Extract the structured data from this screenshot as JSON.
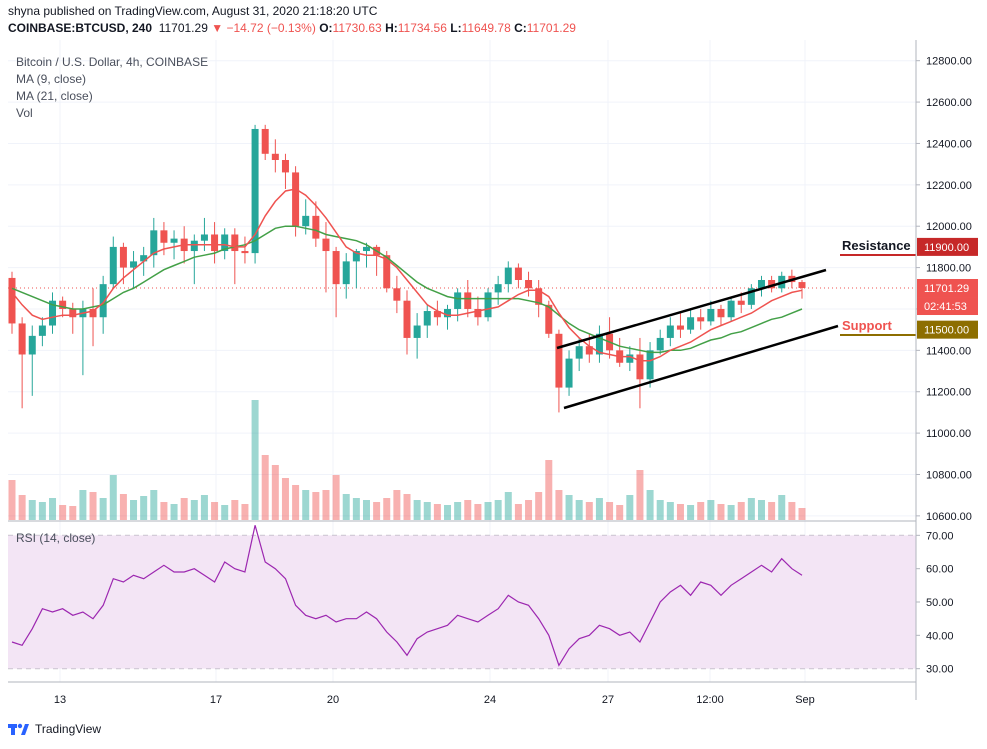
{
  "header": {
    "published": "shyna published on TradingView.com, August 31, 2020 21:18:20 UTC",
    "symbol": "COINBASE:BTCUSD, 240",
    "last": "11701.29",
    "change": "−14.72 (−0.13%)",
    "o_label": "O:",
    "o": "11730.63",
    "h_label": "H:",
    "h": "11734.56",
    "l_label": "L:",
    "l": "11649.78",
    "c_label": "C:",
    "c": "11701.29"
  },
  "legend": {
    "title": "Bitcoin / U.S. Dollar, 4h, COINBASE",
    "ma9": "MA (9, close)",
    "ma21": "MA (21, close)",
    "vol": "Vol"
  },
  "annotations": {
    "resistance": "Resistance",
    "support": "Support"
  },
  "rsi_label": "RSI (14, close)",
  "footer": {
    "brand": "TradingView"
  },
  "colors": {
    "up": "#26a69a",
    "down": "#ef5350",
    "ma9": "#ef5350",
    "ma21": "#43a047",
    "resistance": "#c62828",
    "support": "#8d6e00",
    "rsi_line": "#9c27b0",
    "rsi_bg": "#f3e5f5"
  },
  "chart_data": [
    {
      "type": "candlestick",
      "title": "Bitcoin / U.S. Dollar, 4h, COINBASE",
      "y_ticks": [
        "12800.00",
        "12600.00",
        "12400.00",
        "12200.00",
        "12000.00",
        "11800.00",
        "11600.00",
        "11400.00",
        "11200.00",
        "11000.00",
        "10800.00",
        "10600.00"
      ],
      "ylim": [
        10580,
        12900
      ],
      "x_ticks": [
        "13",
        "17",
        "20",
        "24",
        "27",
        "12:00",
        "Sep"
      ],
      "price_labels": [
        {
          "text": "11900.00",
          "value": 11900,
          "color": "#c62828"
        },
        {
          "text": "11701.29",
          "value": 11701.29,
          "color": "#ef5350"
        },
        {
          "text": "02:41:53",
          "value": 11630,
          "color": "#ef5350"
        },
        {
          "text": "11500.00",
          "value": 11500,
          "color": "#8d6e00"
        }
      ],
      "candles": [
        [
          11750,
          11780,
          11480,
          11530
        ],
        [
          11530,
          11560,
          11120,
          11380
        ],
        [
          11380,
          11520,
          11180,
          11470
        ],
        [
          11470,
          11560,
          11420,
          11520
        ],
        [
          11520,
          11680,
          11480,
          11640
        ],
        [
          11640,
          11660,
          11560,
          11600
        ],
        [
          11600,
          11630,
          11480,
          11560
        ],
        [
          11560,
          11640,
          11280,
          11600
        ],
        [
          11600,
          11700,
          11420,
          11560
        ],
        [
          11560,
          11760,
          11480,
          11720
        ],
        [
          11720,
          11950,
          11700,
          11900
        ],
        [
          11900,
          11920,
          11720,
          11800
        ],
        [
          11800,
          11880,
          11700,
          11830
        ],
        [
          11830,
          11900,
          11760,
          11860
        ],
        [
          11860,
          12040,
          11800,
          11980
        ],
        [
          11980,
          12020,
          11860,
          11920
        ],
        [
          11920,
          11980,
          11840,
          11940
        ],
        [
          11940,
          12000,
          11820,
          11880
        ],
        [
          11880,
          11960,
          11720,
          11930
        ],
        [
          11930,
          12040,
          11880,
          11960
        ],
        [
          11960,
          12020,
          11820,
          11880
        ],
        [
          11880,
          11990,
          11840,
          11960
        ],
        [
          11960,
          11990,
          11720,
          11880
        ],
        [
          11880,
          11950,
          11820,
          11870
        ],
        [
          11870,
          12490,
          11820,
          12470
        ],
        [
          12470,
          12490,
          12320,
          12350
        ],
        [
          12350,
          12420,
          12260,
          12320
        ],
        [
          12320,
          12350,
          12180,
          12260
        ],
        [
          12260,
          12290,
          11950,
          12000
        ],
        [
          12000,
          12130,
          11960,
          12050
        ],
        [
          12050,
          12120,
          11900,
          11940
        ],
        [
          11940,
          12020,
          11680,
          11880
        ],
        [
          11880,
          11900,
          11560,
          11720
        ],
        [
          11720,
          11870,
          11650,
          11830
        ],
        [
          11830,
          11890,
          11700,
          11880
        ],
        [
          11880,
          11920,
          11800,
          11900
        ],
        [
          11900,
          11910,
          11760,
          11860
        ],
        [
          11860,
          11880,
          11680,
          11700
        ],
        [
          11700,
          11760,
          11580,
          11640
        ],
        [
          11640,
          11690,
          11380,
          11460
        ],
        [
          11460,
          11580,
          11360,
          11520
        ],
        [
          11520,
          11620,
          11460,
          11590
        ],
        [
          11590,
          11640,
          11520,
          11560
        ],
        [
          11560,
          11620,
          11500,
          11600
        ],
        [
          11600,
          11700,
          11540,
          11680
        ],
        [
          11680,
          11740,
          11560,
          11600
        ],
        [
          11600,
          11660,
          11520,
          11560
        ],
        [
          11560,
          11700,
          11540,
          11680
        ],
        [
          11680,
          11760,
          11620,
          11720
        ],
        [
          11720,
          11830,
          11680,
          11800
        ],
        [
          11800,
          11820,
          11700,
          11740
        ],
        [
          11740,
          11780,
          11660,
          11700
        ],
        [
          11700,
          11740,
          11560,
          11620
        ],
        [
          11620,
          11640,
          11460,
          11480
        ],
        [
          11480,
          11500,
          11100,
          11220
        ],
        [
          11220,
          11400,
          11180,
          11360
        ],
        [
          11360,
          11460,
          11300,
          11420
        ],
        [
          11420,
          11480,
          11340,
          11380
        ],
        [
          11380,
          11520,
          11340,
          11480
        ],
        [
          11480,
          11560,
          11360,
          11400
        ],
        [
          11400,
          11460,
          11320,
          11340
        ],
        [
          11340,
          11420,
          11300,
          11380
        ],
        [
          11380,
          11460,
          11120,
          11260
        ],
        [
          11260,
          11440,
          11220,
          11400
        ],
        [
          11400,
          11500,
          11380,
          11460
        ],
        [
          11460,
          11560,
          11420,
          11520
        ],
        [
          11520,
          11580,
          11460,
          11500
        ],
        [
          11500,
          11600,
          11480,
          11560
        ],
        [
          11560,
          11600,
          11500,
          11540
        ],
        [
          11540,
          11640,
          11520,
          11600
        ],
        [
          11600,
          11620,
          11520,
          11560
        ],
        [
          11560,
          11660,
          11540,
          11640
        ],
        [
          11640,
          11680,
          11580,
          11620
        ],
        [
          11620,
          11720,
          11600,
          11700
        ],
        [
          11700,
          11760,
          11660,
          11740
        ],
        [
          11740,
          11760,
          11680,
          11700
        ],
        [
          11700,
          11780,
          11680,
          11760
        ],
        [
          11760,
          11790,
          11700,
          11730
        ],
        [
          11730,
          11740,
          11650,
          11701.29
        ]
      ],
      "ma9": [
        11680,
        11620,
        11570,
        11550,
        11560,
        11570,
        11570,
        11580,
        11590,
        11630,
        11700,
        11750,
        11790,
        11830,
        11870,
        11890,
        11900,
        11910,
        11910,
        11910,
        11910,
        11910,
        11900,
        11900,
        11960,
        12050,
        12120,
        12170,
        12180,
        12150,
        12100,
        12040,
        11970,
        11900,
        11870,
        11860,
        11860,
        11840,
        11800,
        11740,
        11680,
        11620,
        11590,
        11570,
        11570,
        11580,
        11590,
        11600,
        11610,
        11640,
        11670,
        11690,
        11690,
        11660,
        11580,
        11510,
        11460,
        11420,
        11390,
        11380,
        11370,
        11370,
        11350,
        11350,
        11370,
        11400,
        11420,
        11440,
        11470,
        11500,
        11520,
        11540,
        11560,
        11580,
        11610,
        11640,
        11660,
        11680,
        11690
      ],
      "ma21": [
        11700,
        11680,
        11660,
        11640,
        11620,
        11610,
        11600,
        11600,
        11610,
        11620,
        11650,
        11680,
        11700,
        11730,
        11760,
        11790,
        11810,
        11830,
        11850,
        11860,
        11870,
        11890,
        11900,
        11910,
        11930,
        11960,
        11990,
        12000,
        12000,
        11990,
        11980,
        11960,
        11950,
        11940,
        11930,
        11910,
        11880,
        11850,
        11810,
        11770,
        11730,
        11700,
        11680,
        11660,
        11650,
        11650,
        11650,
        11650,
        11650,
        11650,
        11650,
        11640,
        11630,
        11610,
        11570,
        11530,
        11500,
        11480,
        11460,
        11440,
        11420,
        11410,
        11400,
        11390,
        11390,
        11400,
        11400,
        11410,
        11430,
        11450,
        11460,
        11480,
        11490,
        11510,
        11530,
        11550,
        11560,
        11580,
        11600
      ],
      "volumes": [
        40,
        25,
        20,
        18,
        22,
        15,
        14,
        30,
        28,
        22,
        45,
        26,
        20,
        24,
        30,
        18,
        16,
        22,
        20,
        25,
        18,
        15,
        20,
        16,
        120,
        65,
        55,
        42,
        35,
        30,
        28,
        30,
        45,
        26,
        22,
        20,
        18,
        22,
        30,
        26,
        20,
        18,
        16,
        15,
        18,
        20,
        16,
        18,
        20,
        28,
        16,
        20,
        28,
        60,
        30,
        25,
        20,
        18,
        22,
        18,
        15,
        25,
        50,
        30,
        20,
        18,
        16,
        15,
        18,
        20,
        16,
        15,
        18,
        22,
        20,
        18,
        25,
        18,
        12
      ]
    },
    {
      "type": "line",
      "title": "RSI (14, close)",
      "y_ticks": [
        "70.00",
        "60.00",
        "50.00",
        "40.00",
        "30.00"
      ],
      "ylim": [
        26,
        74
      ],
      "bands": [
        30,
        70
      ],
      "values": [
        38,
        37,
        42,
        48,
        47,
        48,
        46,
        47,
        45,
        49,
        57,
        56,
        58,
        57,
        59,
        61,
        59,
        59,
        60,
        58,
        56,
        62,
        60,
        59,
        73,
        62,
        60,
        57,
        49,
        46,
        45,
        46,
        44,
        45,
        45,
        47,
        45,
        41,
        38,
        34,
        39,
        41,
        42,
        43,
        46,
        45,
        44,
        46,
        48,
        52,
        50,
        49,
        45,
        40,
        31,
        36,
        39,
        40,
        43,
        42,
        40,
        41,
        38,
        44,
        50,
        53,
        55,
        52,
        56,
        55,
        52,
        55,
        57,
        59,
        61,
        59,
        63,
        60,
        58
      ]
    }
  ]
}
